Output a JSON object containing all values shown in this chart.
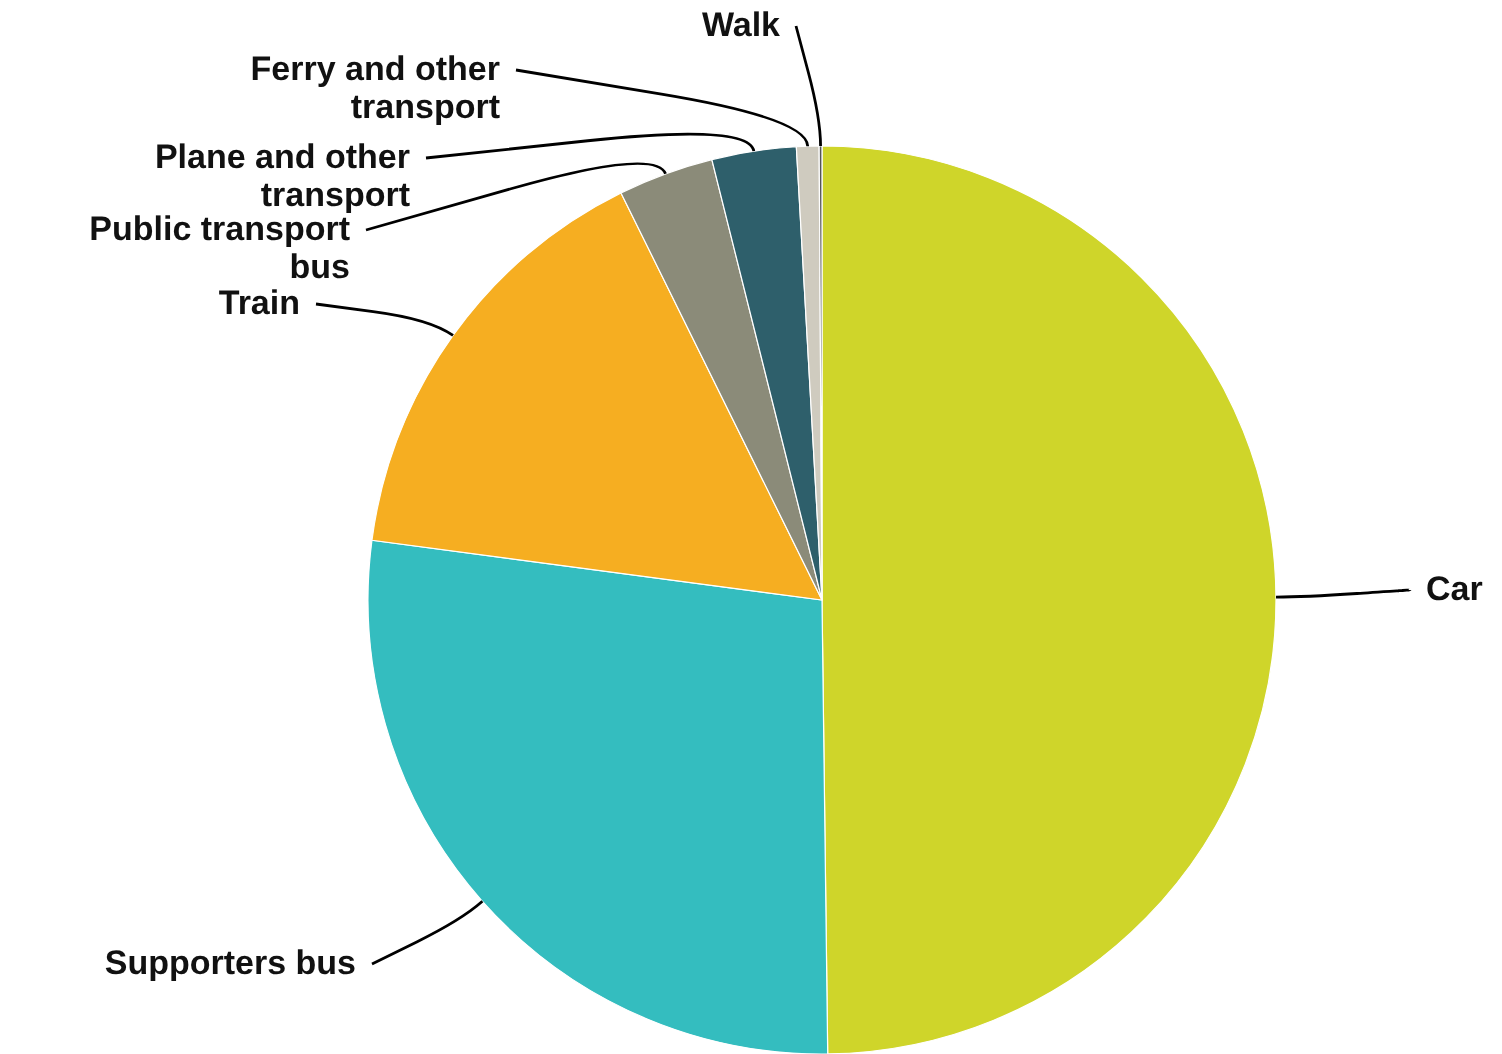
{
  "chart_data": {
    "type": "pie",
    "categories": [
      "Car",
      "Supporters bus",
      "Train",
      "Public transport bus",
      "Plane and other transport",
      "Ferry and other transport",
      "Walk"
    ],
    "values": [
      49.8,
      27.3,
      15.6,
      3.4,
      3.0,
      0.8,
      0.1
    ],
    "colors": [
      "#cfd52a",
      "#34bdbf",
      "#f6ae21",
      "#8b8b79",
      "#2e5f6b",
      "#cfcbbf",
      "#555555"
    ]
  }
}
